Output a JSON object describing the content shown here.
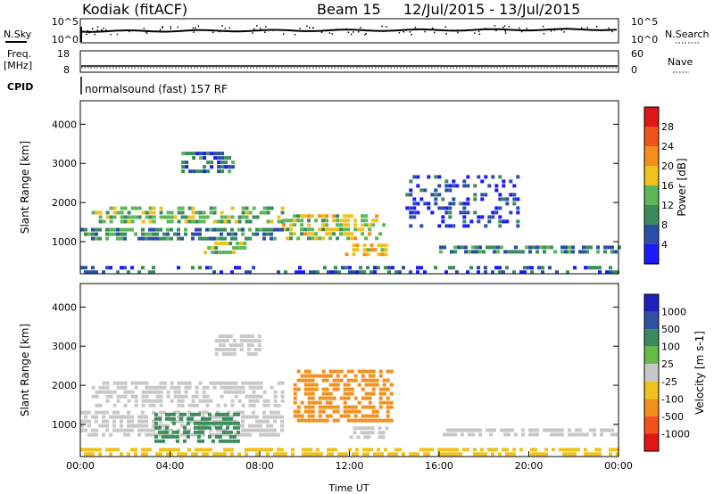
{
  "header": {
    "station": "Kodiak (fitACF)",
    "beam": "Beam 15",
    "dates": "12/Jul/2015 - 13/Jul/2015"
  },
  "top_panels": {
    "nsky_label": "N.Sky",
    "nsearch_label": "N.Search",
    "nsky_ticks": [
      "10^5",
      "10^0"
    ],
    "nsearch_ticks": [
      "10^5",
      "10^0"
    ],
    "freq_label_1": "Freq.",
    "freq_label_2": "[MHz]",
    "freq_ticks": [
      "18",
      "8"
    ],
    "nave_label": "Nave",
    "nave_ticks": [
      "60",
      "0"
    ],
    "cpid_label": "CPID",
    "cpid_value": "normalsound (fast) 157 RF"
  },
  "colors": {
    "power_scale": [
      "#1a1aff",
      "#2b4fa8",
      "#3a8c5c",
      "#5bb85a",
      "#f2c01b",
      "#f28f1b",
      "#f2521b",
      "#e01515"
    ],
    "velocity_scale": [
      "#2020c0",
      "#3050a0",
      "#3a8c5c",
      "#66bb44",
      "#c8c8c8",
      "#f2c01b",
      "#f28f1b",
      "#f2521b",
      "#e01515"
    ]
  },
  "chart_data": [
    {
      "type": "heatmap",
      "name": "power",
      "ylabel": "Slant Range [km]",
      "xlim": [
        0,
        24
      ],
      "ylim": [
        180,
        4600
      ],
      "yticks": [
        1000,
        2000,
        3000,
        4000
      ],
      "colorbar": {
        "label": "Power [dB]",
        "ticks": [
          "4",
          "8",
          "12",
          "16",
          "20",
          "24",
          "28"
        ],
        "range": [
          0,
          32
        ]
      },
      "regions": [
        {
          "t0": 0.5,
          "t1": 9.0,
          "r0": 1550,
          "r1": 1900,
          "v": 14
        },
        {
          "t0": 9.0,
          "t1": 13.6,
          "r0": 1100,
          "r1": 1700,
          "v": 16
        },
        {
          "t0": 0.0,
          "t1": 9.0,
          "r0": 1100,
          "r1": 1350,
          "v": 10
        },
        {
          "t0": 11.8,
          "t1": 13.6,
          "r0": 700,
          "r1": 950,
          "v": 18
        },
        {
          "t0": 5.5,
          "t1": 7.3,
          "r0": 700,
          "r1": 1000,
          "v": 15
        },
        {
          "t0": 16.0,
          "t1": 24.0,
          "r0": 780,
          "r1": 900,
          "v": 9
        },
        {
          "t0": 4.5,
          "t1": 7.0,
          "r0": 2800,
          "r1": 3300,
          "v": 8
        },
        {
          "t0": 0.0,
          "t1": 24.0,
          "r0": 180,
          "r1": 380,
          "v": 6
        },
        {
          "t0": 14.5,
          "t1": 19.5,
          "r0": 1400,
          "r1": 2700,
          "v": 5
        }
      ]
    },
    {
      "type": "heatmap",
      "name": "velocity",
      "ylabel": "Slant Range [km]",
      "xlabel": "Time UT",
      "xlim": [
        0,
        24
      ],
      "ylim": [
        180,
        4600
      ],
      "xticks": [
        "00:00",
        "04:00",
        "08:00",
        "12:00",
        "16:00",
        "20:00",
        "00:00"
      ],
      "yticks": [
        1000,
        2000,
        3000,
        4000
      ],
      "colorbar": {
        "label": "Velocity [m s-1]",
        "ticks": [
          "1000",
          "500",
          "100",
          "25",
          "-25",
          "-100",
          "-500",
          "-1000"
        ]
      },
      "regions": [
        {
          "t0": 0.5,
          "t1": 9.0,
          "r0": 1500,
          "r1": 2100,
          "v": 0
        },
        {
          "t0": 9.5,
          "t1": 13.8,
          "r0": 1050,
          "r1": 2400,
          "v": -200
        },
        {
          "t0": 0.0,
          "t1": 9.0,
          "r0": 750,
          "r1": 1350,
          "v": 0
        },
        {
          "t0": 3.3,
          "t1": 7.0,
          "r0": 600,
          "r1": 1300,
          "v": 150
        },
        {
          "t0": 12.0,
          "t1": 13.6,
          "r0": 700,
          "r1": 950,
          "v": 0
        },
        {
          "t0": 16.0,
          "t1": 24.0,
          "r0": 750,
          "r1": 900,
          "v": 0
        },
        {
          "t0": 6.0,
          "t1": 8.0,
          "r0": 2800,
          "r1": 3300,
          "v": 0
        },
        {
          "t0": 0.0,
          "t1": 24.0,
          "r0": 180,
          "r1": 400,
          "v": -50
        }
      ]
    }
  ]
}
